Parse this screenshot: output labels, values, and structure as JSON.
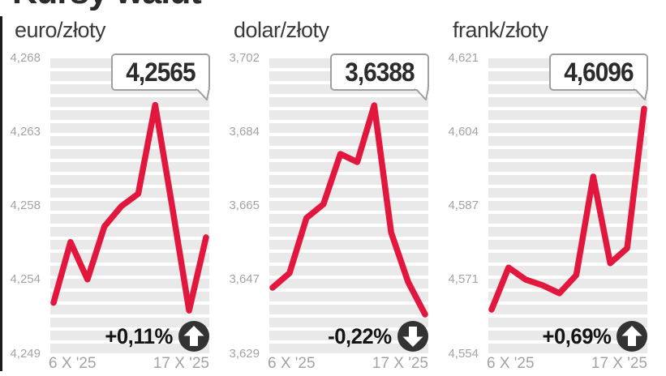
{
  "header": {
    "title": "Kursy walut"
  },
  "style": {
    "line_color": "#e2173d",
    "stripe_color": "#e9e9e9",
    "axis_label_color": "#a3a3a3",
    "badge_border_color": "#9f9f9f",
    "arrow_circle_color": "#333333",
    "text_color": "#2b2b2b"
  },
  "chart_data": [
    {
      "type": "line",
      "title": "euro/złoty",
      "current_value": "4,2565",
      "change": "+0,11%",
      "trend": "up",
      "trend_icon": "arrow-up-icon",
      "x_axis": {
        "start": "6 X '25",
        "end": "17 X '25"
      },
      "y_ticks": [
        "4,268",
        "4,263",
        "4,258",
        "4,254",
        "4,249"
      ],
      "ylim": [
        4.249,
        4.268
      ],
      "values": [
        4.2523,
        4.2562,
        4.2538,
        4.2572,
        4.2585,
        4.2593,
        4.265,
        4.2585,
        4.2518,
        4.2565
      ]
    },
    {
      "type": "line",
      "title": "dolar/złoty",
      "current_value": "3,6388",
      "change": "-0,22%",
      "trend": "down",
      "trend_icon": "arrow-down-icon",
      "x_axis": {
        "start": "6 X '25",
        "end": "17 X '25"
      },
      "y_ticks": [
        "3,702",
        "3,684",
        "3,665",
        "3,647",
        "3,629"
      ],
      "ylim": [
        3.629,
        3.702
      ],
      "values": [
        3.6454,
        3.649,
        3.6626,
        3.666,
        3.6784,
        3.6764,
        3.6904,
        3.659,
        3.6468,
        3.6388
      ]
    },
    {
      "type": "line",
      "title": "frank/złoty",
      "current_value": "4,6096",
      "change": "+0,69%",
      "trend": "up",
      "trend_icon": "arrow-up-icon",
      "x_axis": {
        "start": "6 X '25",
        "end": "17 X '25"
      },
      "y_ticks": [
        "4,621",
        "4,604",
        "4,587",
        "4,571",
        "4,554"
      ],
      "ylim": [
        4.554,
        4.621
      ],
      "values": [
        4.5641,
        4.5736,
        4.5709,
        4.5696,
        4.5678,
        4.5719,
        4.5942,
        4.5746,
        4.578,
        4.6096
      ]
    }
  ]
}
